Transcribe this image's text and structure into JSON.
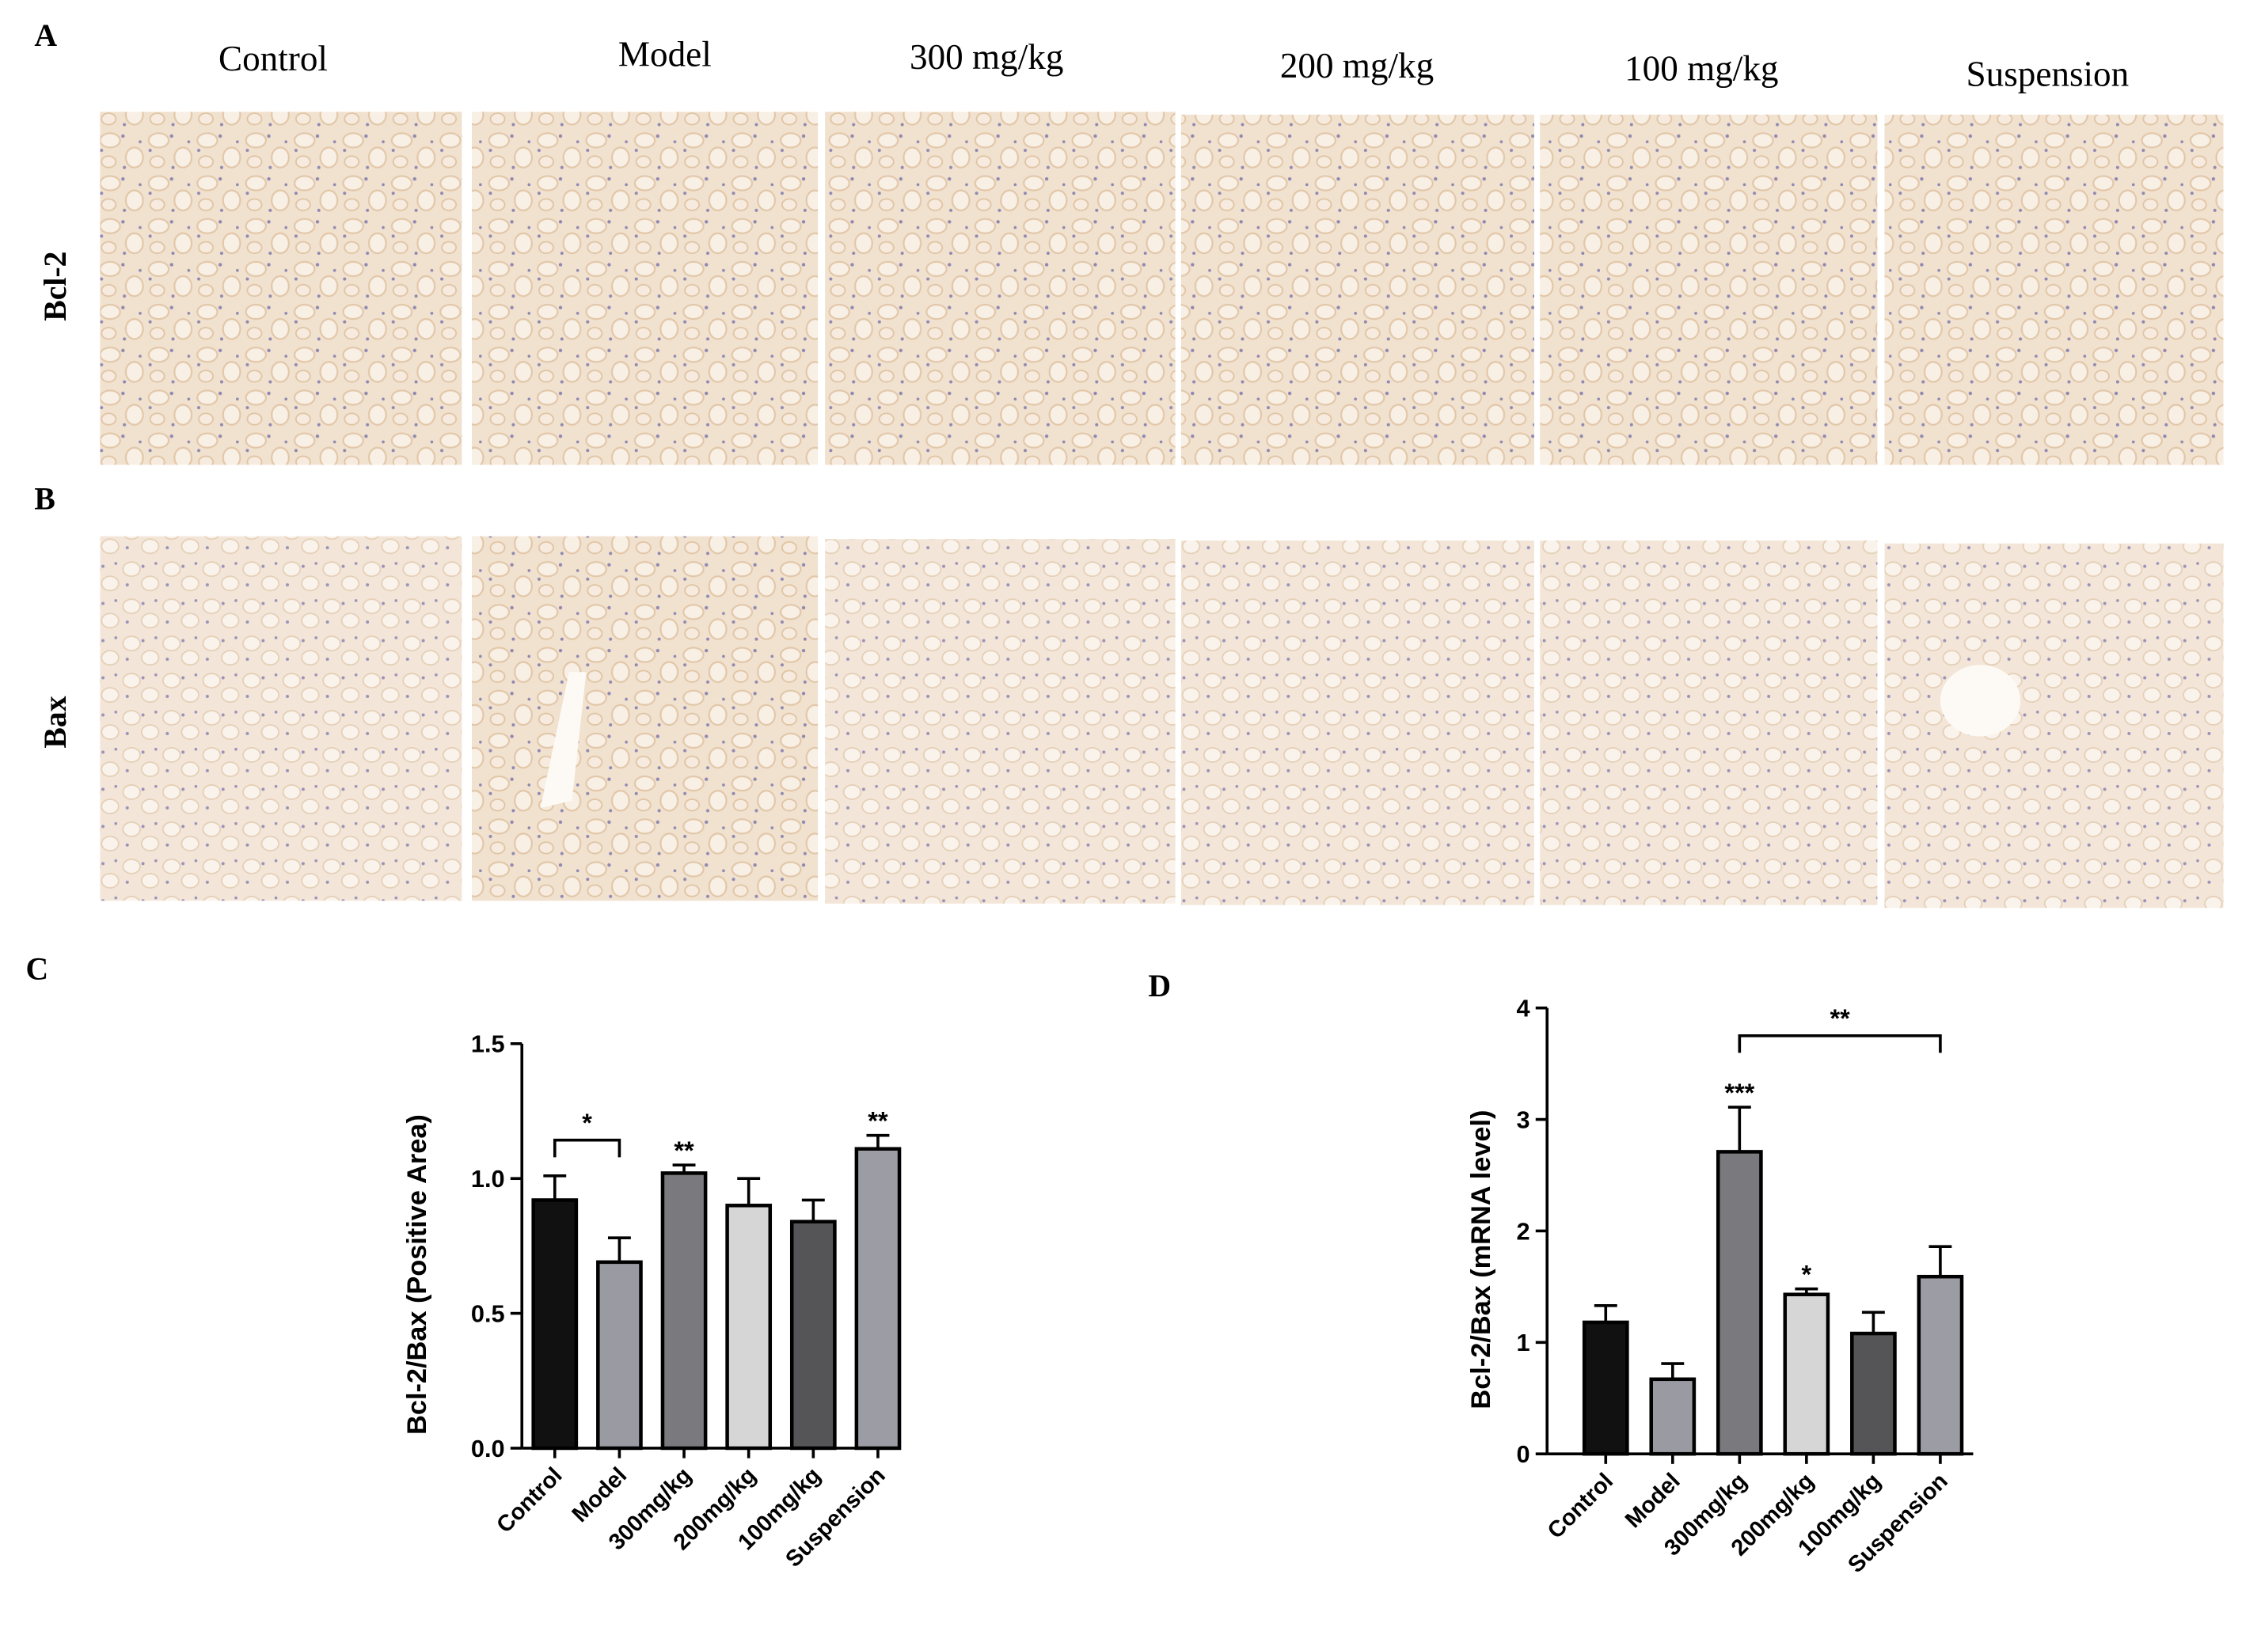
{
  "panel_labels": [
    "A",
    "B",
    "C",
    "D"
  ],
  "columns": [
    "Control",
    "Model",
    "300 mg/kg",
    "200 mg/kg",
    "100 mg/kg",
    "Suspension"
  ],
  "rows": [
    "Bcl-2",
    "Bax"
  ],
  "chart_data": [
    {
      "type": "bar",
      "y_label": "Bcl-2/Bax (Positive Area)",
      "categories": [
        "Control",
        "Model",
        "300mg/kg",
        "200mg/kg",
        "100mg/kg",
        "Suspension"
      ],
      "values": [
        0.92,
        0.69,
        1.02,
        0.9,
        0.84,
        1.11
      ],
      "errors": [
        0.09,
        0.09,
        0.03,
        0.1,
        0.08,
        0.05
      ],
      "colors": [
        "#111111",
        "#9a9aa2",
        "#7a7a7e",
        "#d6d6d6",
        "#555558",
        "#9c9ca4"
      ],
      "ylim": [
        0,
        1.5
      ],
      "yticks": [
        {
          "value": 0,
          "label": "0.0"
        },
        {
          "value": 0.5,
          "label": "0.5"
        },
        {
          "value": 1,
          "label": "1.0"
        },
        {
          "value": 1.5,
          "label": "1.5"
        }
      ],
      "annotations": [
        {
          "text": "*",
          "from": 0,
          "to": 1
        },
        {
          "text": "**",
          "at": 2
        },
        {
          "text": "**",
          "at": 5
        }
      ]
    },
    {
      "type": "bar",
      "y_label": "Bcl-2/Bax (mRNA level)",
      "categories": [
        "Control",
        "Model",
        "300mg/kg",
        "200mg/kg",
        "100mg/kg",
        "Suspension"
      ],
      "values": [
        1.18,
        0.67,
        2.71,
        1.43,
        1.08,
        1.59
      ],
      "errors": [
        0.15,
        0.14,
        0.4,
        0.05,
        0.19,
        0.27
      ],
      "colors": [
        "#111111",
        "#9a9aa2",
        "#7a7a7e",
        "#d6d6d6",
        "#555558",
        "#9c9ca4"
      ],
      "ylim": [
        0,
        4
      ],
      "yticks": [
        0,
        1,
        2,
        3,
        4
      ],
      "annotations": [
        {
          "text": "***",
          "at": 2
        },
        {
          "text": "*",
          "at": 3
        },
        {
          "text": "**",
          "from": 2,
          "to": 5
        }
      ]
    }
  ]
}
